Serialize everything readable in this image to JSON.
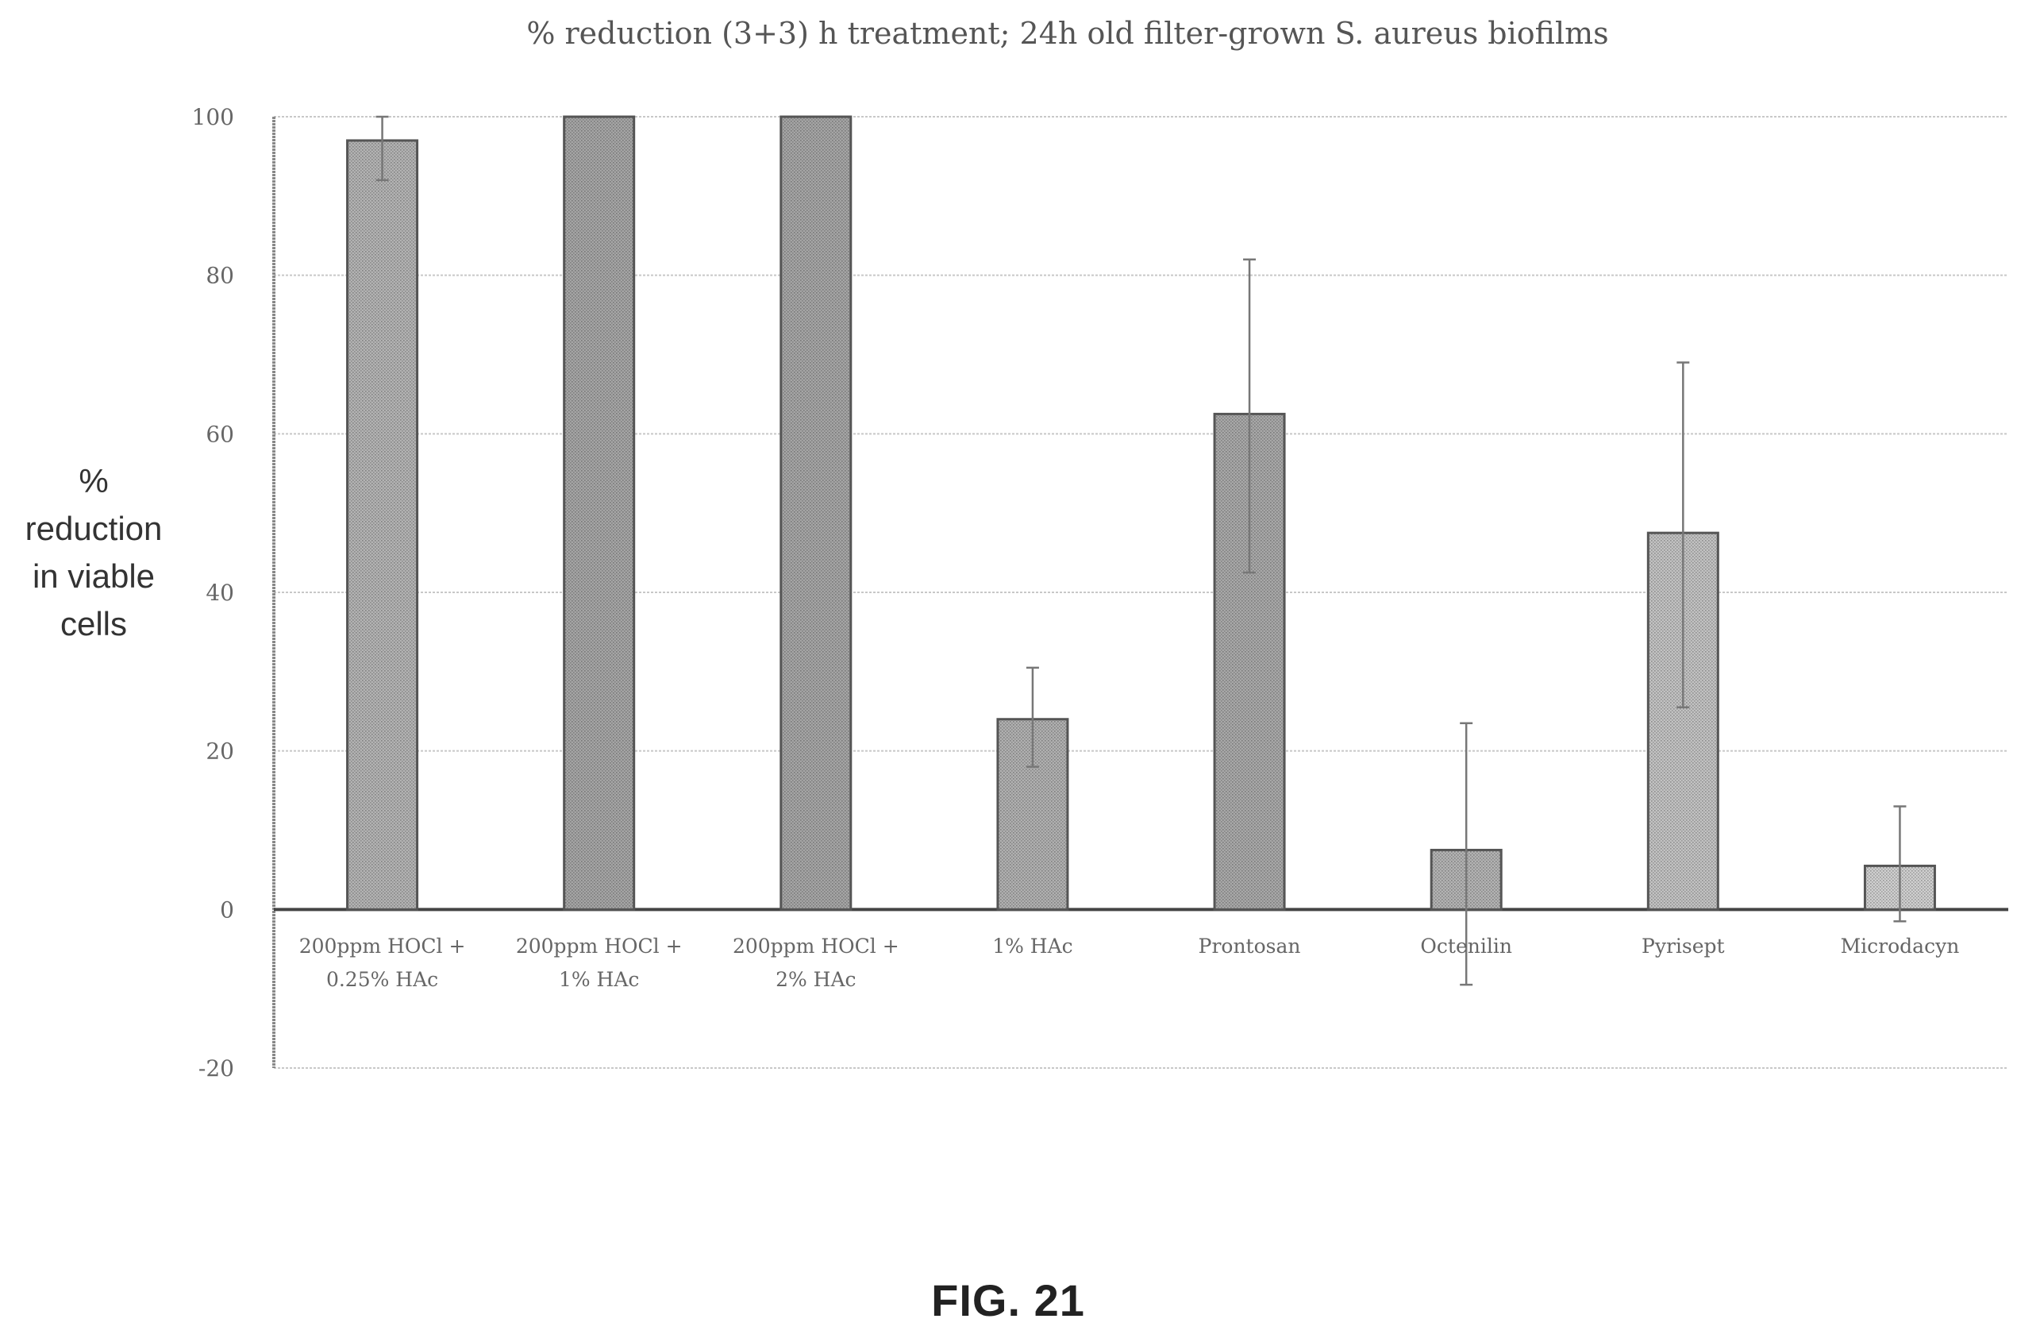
{
  "chart_data": {
    "type": "bar",
    "title": "% reduction (3+3) h treatment; 24h old filter-grown S. aureus biofilms",
    "ylabel_lines": [
      "%",
      "reduction",
      "in viable",
      "cells"
    ],
    "xlabel": "",
    "ylim": [
      -20,
      100
    ],
    "yticks": [
      -20,
      0,
      20,
      40,
      60,
      80,
      100
    ],
    "grid": true,
    "categories": [
      [
        "200ppm HOCl +",
        "0.25% HAc"
      ],
      [
        "200ppm HOCl +",
        "1% HAc"
      ],
      [
        "200ppm HOCl +",
        "2% HAc"
      ],
      [
        "1% HAc"
      ],
      [
        "Prontosan"
      ],
      [
        "Octenilin"
      ],
      [
        "Pyrisept"
      ],
      [
        "Microdacyn"
      ]
    ],
    "values": [
      97,
      100,
      100,
      24,
      62.5,
      7.5,
      47.5,
      5.5
    ],
    "error_plus": [
      3,
      0,
      0,
      6.5,
      19.5,
      16,
      21.5,
      7.5
    ],
    "error_minus": [
      5,
      0,
      0,
      6,
      20,
      17,
      22,
      7
    ],
    "bar_colors": [
      "#b3b3b3",
      "#a5a5a5",
      "#a5a5a5",
      "#b0b0b0",
      "#a8a8a8",
      "#b3b3b3",
      "#c2c2c2",
      "#cfcfcf"
    ]
  },
  "figure_label": "FIG. 21"
}
